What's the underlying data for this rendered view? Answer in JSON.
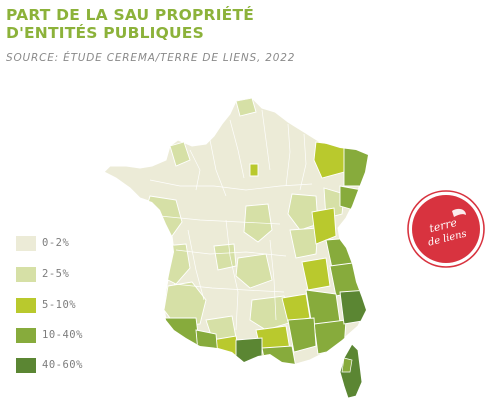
{
  "title": "PART DE LA SAU PROPRIÉTÉ D'ENTITÉS PUBLIQUES",
  "source": "SOURCE: ÉTUDE CEREMA/TERRE DE LIENS, 2022",
  "legend": {
    "items": [
      {
        "label": "0-2%",
        "color": "#ecebd7"
      },
      {
        "label": "2-5%",
        "color": "#d6e0a6"
      },
      {
        "label": "5-10%",
        "color": "#b9c92d"
      },
      {
        "label": "10-40%",
        "color": "#87ab3c"
      },
      {
        "label": "40-60%",
        "color": "#5b8633"
      }
    ]
  },
  "logo": {
    "text_line1": "terre",
    "text_line2": "de liens",
    "color": "#d8333f"
  },
  "map": {
    "name": "France departments",
    "region_classes": [
      "0-2%",
      "2-5%",
      "5-10%",
      "10-40%",
      "40-60%"
    ]
  }
}
